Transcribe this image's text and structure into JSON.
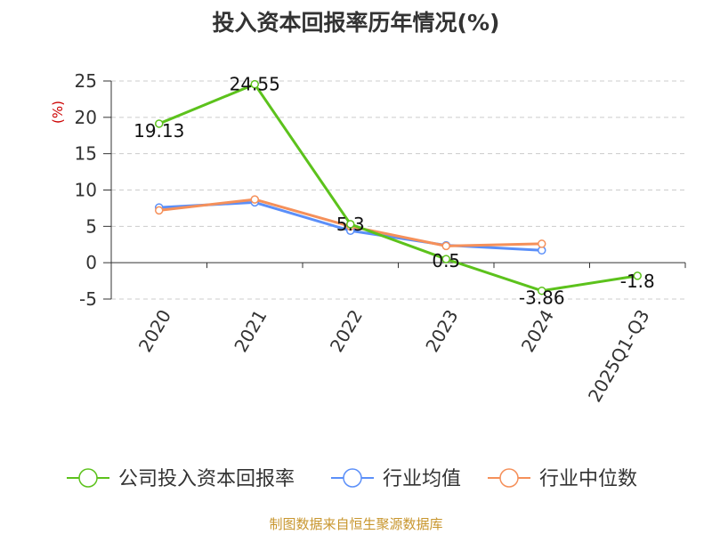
{
  "chart_data": {
    "type": "line",
    "title": "投入资本回报率历年情况(%)",
    "ylabel": "(%)",
    "xlabel": "",
    "categories": [
      "2020",
      "2021",
      "2022",
      "2023",
      "2024",
      "2025Q1-Q3"
    ],
    "ylim": [
      -5,
      25
    ],
    "yticks": [
      25,
      20,
      15,
      10,
      5,
      0,
      -5
    ],
    "grid": true,
    "legend_position": "bottom",
    "series": [
      {
        "name": "公司投入资本回报率",
        "color": "#5cc21c",
        "values": [
          19.13,
          24.55,
          5.3,
          0.5,
          -3.86,
          -1.8
        ],
        "labels": [
          "19.13",
          "24.55",
          "5.3",
          "0.5",
          "-3.86",
          "-1.8"
        ]
      },
      {
        "name": "行业均值",
        "color": "#5b8ff9",
        "values": [
          7.6,
          8.3,
          4.4,
          2.4,
          1.7,
          null
        ]
      },
      {
        "name": "行业中位数",
        "color": "#f5905a",
        "values": [
          7.2,
          8.7,
          5.0,
          2.3,
          2.6,
          null
        ]
      }
    ]
  },
  "source": "制图数据来自恒生聚源数据库"
}
